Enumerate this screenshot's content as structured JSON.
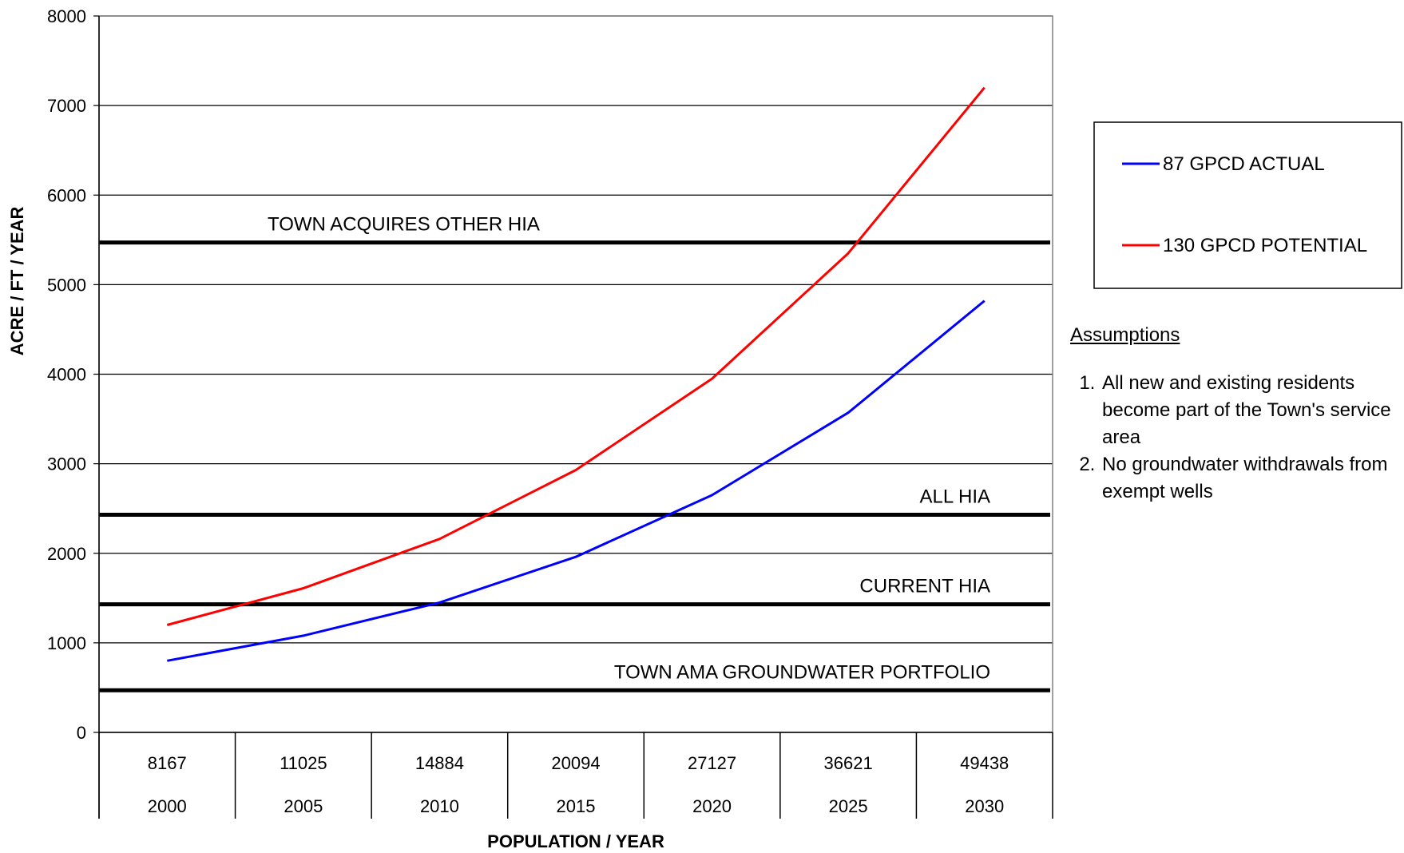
{
  "chart_data": {
    "type": "line",
    "title": "",
    "xlabel": "POPULATION / YEAR",
    "ylabel": "ACRE / FT / YEAR",
    "ylim": [
      0,
      8000
    ],
    "yticks": [
      0,
      1000,
      2000,
      3000,
      4000,
      5000,
      6000,
      7000,
      8000
    ],
    "grid": true,
    "legend_position": "right",
    "categories": [
      {
        "population": "8167",
        "year": "2000"
      },
      {
        "population": "11025",
        "year": "2005"
      },
      {
        "population": "14884",
        "year": "2010"
      },
      {
        "population": "20094",
        "year": "2015"
      },
      {
        "population": "27127",
        "year": "2020"
      },
      {
        "population": "36621",
        "year": "2025"
      },
      {
        "population": "49438",
        "year": "2030"
      }
    ],
    "series": [
      {
        "name": "87 GPCD ACTUAL",
        "color": "#0000ff",
        "values": [
          800,
          1080,
          1450,
          1960,
          2650,
          3570,
          4820
        ]
      },
      {
        "name": "130 GPCD POTENTIAL",
        "color": "#ff0000",
        "values": [
          1200,
          1610,
          2160,
          2930,
          3950,
          5350,
          7200
        ]
      }
    ],
    "reference_lines": [
      {
        "label": "TOWN  ACQUIRES OTHER HIA",
        "value": 5470,
        "label_anchor": "left"
      },
      {
        "label": "ALL HIA",
        "value": 2430,
        "label_anchor": "right"
      },
      {
        "label": "CURRENT HIA",
        "value": 1430,
        "label_anchor": "right"
      },
      {
        "label": "TOWN AMA GROUNDWATER PORTFOLIO",
        "value": 470,
        "label_anchor": "right"
      }
    ]
  },
  "assumptions": {
    "title": "Assumptions",
    "items": [
      "All new and existing residents become part of the Town's service area",
      "No groundwater withdrawals from exempt wells"
    ]
  }
}
